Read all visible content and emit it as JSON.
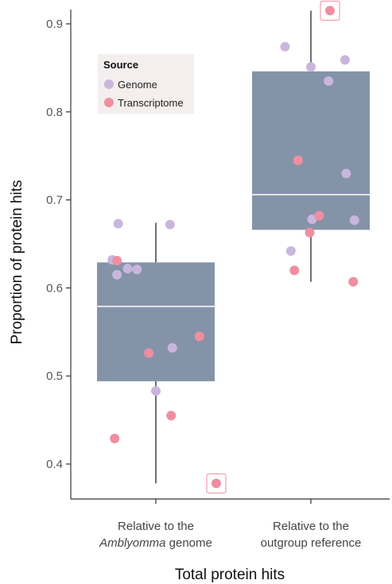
{
  "chart_data": {
    "type": "box",
    "xlabel": "Total protein hits",
    "ylabel": "Proportion of protein hits",
    "ylim": [
      0.37,
      0.92
    ],
    "yticks": [
      0.4,
      0.5,
      0.6,
      0.7,
      0.8,
      0.9
    ],
    "ytick_labels": [
      "0.4",
      "0.5",
      "0.6",
      "0.7",
      "0.8",
      "0.9"
    ],
    "grid": false,
    "legend": {
      "title": "Source",
      "placement": "top-left",
      "entries": [
        {
          "label": "Genome",
          "color": "#c9b6dd"
        },
        {
          "label": "Transcriptome",
          "color": "#ef8ea0"
        }
      ]
    },
    "categories": [
      {
        "line1": "Relative to the",
        "line2_italic": "Amblyomma",
        "line2_rest": " genome"
      },
      {
        "line1": "Relative to the",
        "line2_italic": "",
        "line2_rest": "outgroup reference"
      }
    ],
    "box_color": "#8593a9",
    "median_color": "#ffffff",
    "whisker_color": "#333333",
    "boxes": [
      {
        "whisker_low": 0.378,
        "q1": 0.494,
        "median": 0.579,
        "q3": 0.629,
        "whisker_high": 0.674
      },
      {
        "whisker_low": 0.607,
        "q1": 0.666,
        "median": 0.706,
        "q3": 0.846,
        "whisker_high": 0.915
      }
    ],
    "outliers": [
      {
        "group": 0,
        "y": 0.378,
        "source": "Transcriptome"
      },
      {
        "group": 1,
        "y": 0.915,
        "source": "Transcriptome"
      }
    ],
    "points": [
      {
        "group": 0,
        "jitter": -0.37,
        "y": 0.632,
        "source": "Genome"
      },
      {
        "group": 0,
        "jitter": -0.33,
        "y": 0.615,
        "source": "Genome"
      },
      {
        "group": 0,
        "jitter": -0.32,
        "y": 0.673,
        "source": "Genome"
      },
      {
        "group": 0,
        "jitter": -0.24,
        "y": 0.622,
        "source": "Genome"
      },
      {
        "group": 0,
        "jitter": -0.16,
        "y": 0.621,
        "source": "Genome"
      },
      {
        "group": 0,
        "jitter": 0.12,
        "y": 0.672,
        "source": "Genome"
      },
      {
        "group": 0,
        "jitter": 0.14,
        "y": 0.532,
        "source": "Genome"
      },
      {
        "group": 0,
        "jitter": 0.0,
        "y": 0.483,
        "source": "Genome"
      },
      {
        "group": 0,
        "jitter": -0.33,
        "y": 0.631,
        "source": "Transcriptome"
      },
      {
        "group": 0,
        "jitter": -0.06,
        "y": 0.526,
        "source": "Transcriptome"
      },
      {
        "group": 0,
        "jitter": 0.37,
        "y": 0.545,
        "source": "Transcriptome"
      },
      {
        "group": 0,
        "jitter": 0.13,
        "y": 0.455,
        "source": "Transcriptome"
      },
      {
        "group": 0,
        "jitter": -0.35,
        "y": 0.429,
        "source": "Transcriptome"
      },
      {
        "group": 1,
        "jitter": -0.22,
        "y": 0.874,
        "source": "Genome"
      },
      {
        "group": 1,
        "jitter": 0.0,
        "y": 0.851,
        "source": "Genome"
      },
      {
        "group": 1,
        "jitter": 0.15,
        "y": 0.835,
        "source": "Genome"
      },
      {
        "group": 1,
        "jitter": 0.29,
        "y": 0.859,
        "source": "Genome"
      },
      {
        "group": 1,
        "jitter": 0.3,
        "y": 0.73,
        "source": "Genome"
      },
      {
        "group": 1,
        "jitter": 0.37,
        "y": 0.677,
        "source": "Genome"
      },
      {
        "group": 1,
        "jitter": 0.01,
        "y": 0.678,
        "source": "Genome"
      },
      {
        "group": 1,
        "jitter": -0.17,
        "y": 0.642,
        "source": "Genome"
      },
      {
        "group": 1,
        "jitter": -0.11,
        "y": 0.745,
        "source": "Transcriptome"
      },
      {
        "group": 1,
        "jitter": 0.07,
        "y": 0.682,
        "source": "Transcriptome"
      },
      {
        "group": 1,
        "jitter": -0.01,
        "y": 0.663,
        "source": "Transcriptome"
      },
      {
        "group": 1,
        "jitter": -0.14,
        "y": 0.62,
        "source": "Transcriptome"
      },
      {
        "group": 1,
        "jitter": 0.36,
        "y": 0.607,
        "source": "Transcriptome"
      }
    ]
  }
}
